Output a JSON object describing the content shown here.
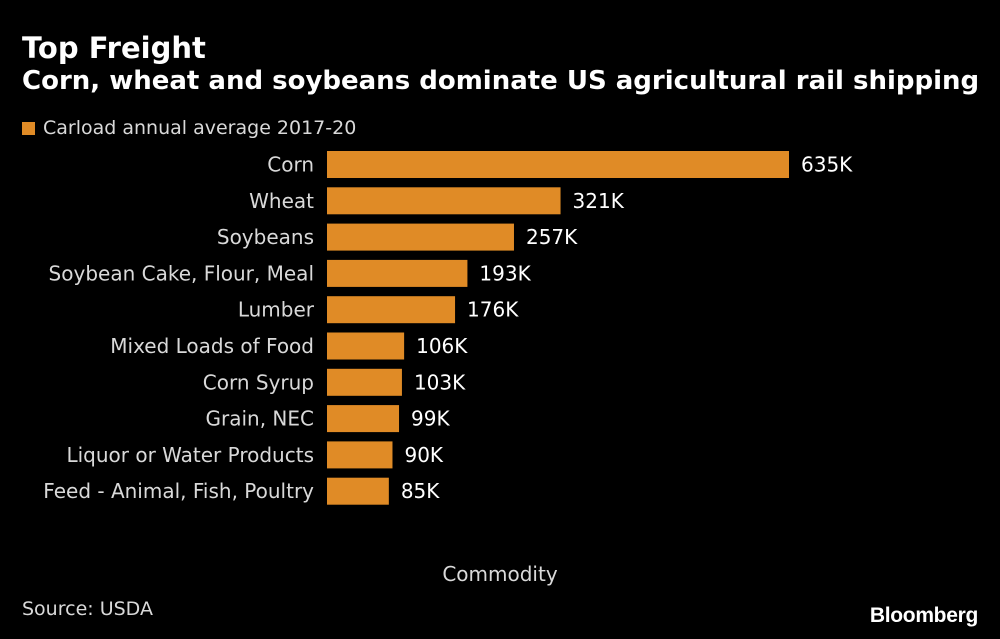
{
  "chart_data": {
    "type": "bar",
    "orientation": "horizontal",
    "title": "Top Freight",
    "subtitle": "Corn, wheat and soybeans dominate US agricultural rail shipping",
    "legend": "Carload annual average 2017-20",
    "xlabel": "Commodity",
    "categories": [
      "Corn",
      "Wheat",
      "Soybeans",
      "Soybean Cake, Flour, Meal",
      "Lumber",
      "Mixed Loads of Food",
      "Corn Syrup",
      "Grain, NEC",
      "Liquor or Water Products",
      "Feed - Animal, Fish, Poultry"
    ],
    "values": [
      635,
      321,
      257,
      193,
      176,
      106,
      103,
      99,
      90,
      85
    ],
    "value_labels": [
      "635K",
      "321K",
      "257K",
      "193K",
      "176K",
      "106K",
      "103K",
      "99K",
      "90K",
      "85K"
    ],
    "xlim": [
      0,
      635
    ],
    "grid": false,
    "legend_position": "top-left"
  },
  "source": "Source: USDA",
  "brand": "Bloomberg",
  "colors": {
    "bar": "#e08b26",
    "background": "#000000"
  }
}
